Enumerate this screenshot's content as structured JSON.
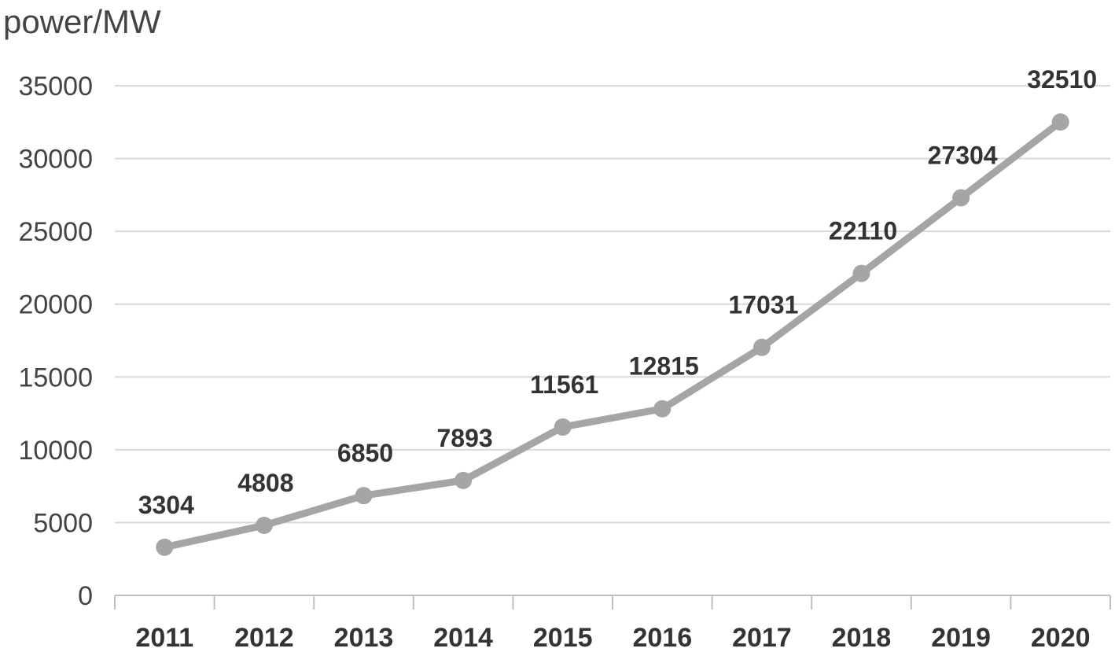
{
  "chart_data": {
    "type": "line",
    "title": "",
    "xlabel": "",
    "ylabel": "power/MW",
    "categories": [
      "2011",
      "2012",
      "2013",
      "2014",
      "2015",
      "2016",
      "2017",
      "2018",
      "2019",
      "2020"
    ],
    "series": [
      {
        "values": [
          3304,
          4808,
          6850,
          7893,
          11561,
          12815,
          17031,
          22110,
          27304,
          32510
        ]
      }
    ],
    "data_labels": [
      "3304",
      "4808",
      "6850",
      "7893",
      "11561",
      "12815",
      "17031",
      "22110",
      "27304",
      "32510"
    ],
    "ylim": [
      0,
      35000
    ],
    "yticks": [
      "0",
      "5000",
      "10000",
      "15000",
      "20000",
      "25000",
      "30000",
      "35000"
    ],
    "grid": true,
    "legend": "none",
    "colors": {
      "line": "#a5a5a5",
      "grid": "#d9d9d9",
      "axis": "#bfbfbf"
    }
  }
}
